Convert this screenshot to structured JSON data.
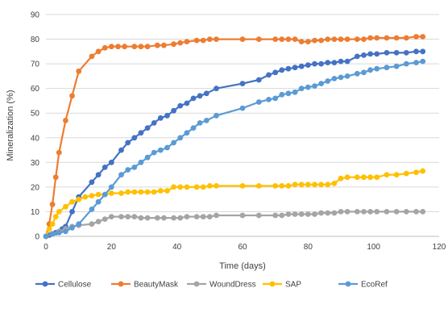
{
  "chart_data": {
    "type": "line",
    "xlabel": "Time (days)",
    "ylabel": "Mineralization (%)",
    "xlim": [
      0,
      120
    ],
    "ylim": [
      0,
      90
    ],
    "x_ticks": [
      0,
      20,
      40,
      60,
      80,
      100,
      120
    ],
    "y_ticks": [
      0,
      10,
      20,
      30,
      40,
      50,
      60,
      70,
      80,
      90
    ],
    "grid": "horizontal",
    "legend_position": "bottom",
    "series": [
      {
        "name": "Cellulose",
        "color": "#4472c4",
        "x": [
          0,
          1,
          2,
          3,
          4,
          5,
          6,
          8,
          10,
          14,
          16,
          18,
          20,
          23,
          25,
          27,
          29,
          31,
          33,
          35,
          37,
          39,
          41,
          43,
          45,
          47,
          49,
          52,
          60,
          65,
          68,
          70,
          72,
          74,
          76,
          78,
          80,
          82,
          84,
          86,
          88,
          90,
          92,
          95,
          97,
          99,
          101,
          104,
          107,
          110,
          113,
          115
        ],
        "y": [
          0,
          0.5,
          1,
          1.5,
          2,
          3,
          4,
          10,
          16,
          22,
          25,
          28,
          30,
          35,
          38,
          40,
          42,
          44,
          46,
          48,
          49,
          51,
          53,
          54,
          56,
          57,
          58,
          60,
          62,
          63.5,
          65.5,
          66.5,
          67.5,
          68,
          68.5,
          69,
          69.5,
          70,
          70,
          70.5,
          70.5,
          71,
          71,
          73,
          73.5,
          74,
          74,
          74.5,
          74.5,
          74.5,
          75,
          75
        ]
      },
      {
        "name": "BeautyMask",
        "color": "#ed7d31",
        "x": [
          0,
          1,
          2,
          3,
          4,
          6,
          8,
          10,
          14,
          16,
          18,
          20,
          22,
          24,
          27,
          29,
          31,
          34,
          36,
          39,
          41,
          43,
          46,
          48,
          50,
          52,
          60,
          65,
          70,
          72,
          74,
          76,
          78,
          80,
          82,
          84,
          86,
          88,
          90,
          92,
          95,
          97,
          99,
          101,
          104,
          107,
          110,
          113,
          115
        ],
        "y": [
          0,
          5,
          13,
          24,
          34,
          47,
          57,
          67,
          73,
          75,
          76.5,
          77,
          77,
          77,
          77,
          77,
          77,
          77.5,
          77.5,
          78,
          78.5,
          79,
          79.5,
          79.5,
          80,
          80,
          80,
          80,
          80,
          80,
          80,
          80,
          79,
          79,
          79.5,
          79.5,
          80,
          80,
          80,
          80,
          80,
          80,
          80.5,
          80.5,
          80.5,
          80.5,
          80.5,
          81,
          81
        ]
      },
      {
        "name": "WoundDress",
        "color": "#a5a5a5",
        "x": [
          0,
          2,
          4,
          6,
          8,
          10,
          14,
          16,
          18,
          20,
          23,
          25,
          27,
          29,
          31,
          34,
          36,
          39,
          41,
          43,
          46,
          48,
          50,
          52,
          60,
          65,
          70,
          72,
          74,
          76,
          78,
          80,
          82,
          84,
          86,
          88,
          90,
          92,
          95,
          97,
          99,
          101,
          104,
          107,
          110,
          113,
          115
        ],
        "y": [
          0,
          1,
          2,
          3,
          4,
          4.5,
          5,
          6,
          7,
          8,
          8,
          8,
          8,
          7.5,
          7.5,
          7.5,
          7.5,
          7.5,
          7.5,
          8,
          8,
          8,
          8,
          8.5,
          8.5,
          8.5,
          8.5,
          8.5,
          9,
          9,
          9,
          9,
          9,
          9.5,
          9.5,
          9.5,
          10,
          10,
          10,
          10,
          10,
          10,
          10,
          10,
          10,
          10,
          10
        ]
      },
      {
        "name": "SAP",
        "color": "#ffc000",
        "x": [
          0,
          1,
          2,
          3,
          4,
          6,
          8,
          10,
          12,
          14,
          16,
          18,
          20,
          23,
          25,
          27,
          29,
          31,
          33,
          35,
          37,
          39,
          41,
          43,
          46,
          48,
          50,
          52,
          60,
          65,
          70,
          72,
          74,
          76,
          78,
          80,
          82,
          84,
          86,
          88,
          90,
          92,
          95,
          97,
          99,
          101,
          104,
          107,
          110,
          113,
          115
        ],
        "y": [
          0,
          3,
          5,
          8,
          10,
          12,
          14,
          15,
          16,
          16.5,
          17,
          17,
          17.5,
          17.5,
          18,
          18,
          18,
          18,
          18,
          18.5,
          18.5,
          20,
          20,
          20,
          20,
          20,
          20.5,
          20.5,
          20.5,
          20.5,
          20.5,
          20.5,
          20.5,
          21,
          21,
          21,
          21,
          21,
          21,
          21.5,
          23.5,
          24,
          24,
          24,
          24,
          24,
          25,
          25,
          25.5,
          26,
          26.5
        ]
      },
      {
        "name": "EcoRef",
        "color": "#5b9bd5",
        "x": [
          0,
          2,
          4,
          6,
          8,
          10,
          14,
          16,
          18,
          20,
          23,
          25,
          27,
          29,
          31,
          33,
          35,
          37,
          39,
          41,
          43,
          45,
          47,
          49,
          52,
          60,
          65,
          68,
          70,
          72,
          74,
          76,
          78,
          80,
          82,
          84,
          86,
          88,
          90,
          92,
          95,
          97,
          99,
          101,
          104,
          107,
          110,
          113,
          115
        ],
        "y": [
          0,
          1,
          1.5,
          2,
          3.5,
          5,
          11,
          14,
          17,
          20,
          25,
          27,
          28,
          30,
          32,
          34,
          35,
          36,
          38,
          40,
          42,
          44,
          46,
          47,
          49,
          52,
          54.5,
          55.5,
          56,
          57.5,
          58,
          58.5,
          60,
          60.5,
          61,
          62,
          63,
          64,
          64.5,
          65,
          66,
          66.5,
          67.5,
          68,
          68.5,
          69,
          70,
          70.5,
          71
        ]
      }
    ]
  }
}
